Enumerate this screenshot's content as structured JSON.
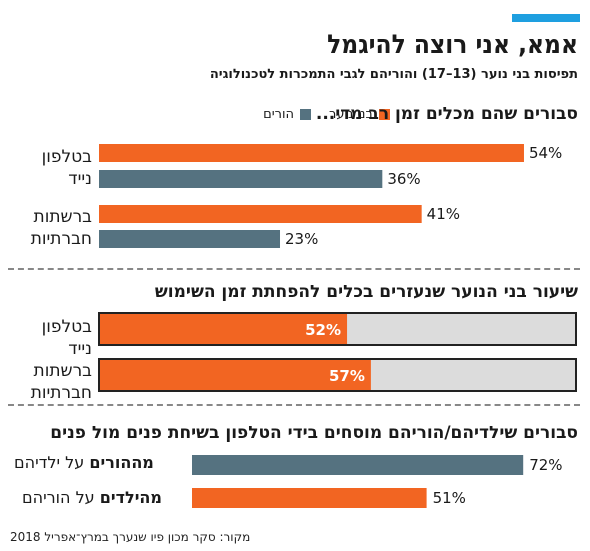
{
  "header": {
    "title": "אמא, אני רוצה להיגמל",
    "subtitle": "תפיסות בני נוער (13–17) והוריהם לגבי התמכרות לטכנולוגיה"
  },
  "legend": {
    "teens": "בני נוער",
    "parents": "הורים"
  },
  "sections": {
    "s1_title_pre": "סבורים ש",
    "s1_title_bold": "הם",
    "s1_title_post": " מכלים זמן רב מדי...",
    "s2_title": "שיעור בני הנוער שנעזרים בכלים להפחתת זמן השימוש",
    "s3_title": "סבורים שילדיהם/הוריהם מוסחים בידי הטלפון בשיחת פנים מול פנים"
  },
  "categories": {
    "phone_l1": "בטלפון",
    "phone_l2": "נייד",
    "social_l1": "ברשתות",
    "social_l2": "חברתיות"
  },
  "s3_rows": {
    "row1_bold": "מההורים",
    "row1_rest": " על ילדיהם",
    "row2_bold": "מהילדים",
    "row2_rest": " על הוריהם"
  },
  "source": "מקור: סקר מכון פיו שנערך במרץ־אפריל 2018",
  "colors": {
    "teens": "#f26522",
    "parents": "#557280",
    "track": "#dcdcdc",
    "accent": "#1e9fe0"
  },
  "chart_data": [
    {
      "type": "bar",
      "orientation": "horizontal",
      "title": "סבורים שהם מכלים זמן רב מדי...",
      "categories": [
        "בטלפון נייד",
        "ברשתות חברתיות"
      ],
      "series": [
        {
          "name": "בני נוער",
          "values": [
            54,
            41
          ]
        },
        {
          "name": "הורים",
          "values": [
            36,
            23
          ]
        }
      ],
      "unit": "%",
      "xlim": [
        0,
        100
      ]
    },
    {
      "type": "bar",
      "orientation": "horizontal",
      "title": "שיעור בני הנוער שנעזרים בכלים להפחתת זמן השימוש",
      "categories": [
        "בטלפון נייד",
        "ברשתות חברתיות"
      ],
      "values": [
        52,
        57
      ],
      "unit": "%",
      "xlim": [
        0,
        100
      ]
    },
    {
      "type": "bar",
      "orientation": "horizontal",
      "title": "סבורים שילדיהם/הוריהם מוסחים בידי הטלפון בשיחת פנים מול פנים",
      "categories": [
        "מההורים על ילדיהם",
        "מהילדים על הוריהם"
      ],
      "values": [
        72,
        51
      ],
      "unit": "%",
      "xlim": [
        0,
        100
      ]
    }
  ]
}
